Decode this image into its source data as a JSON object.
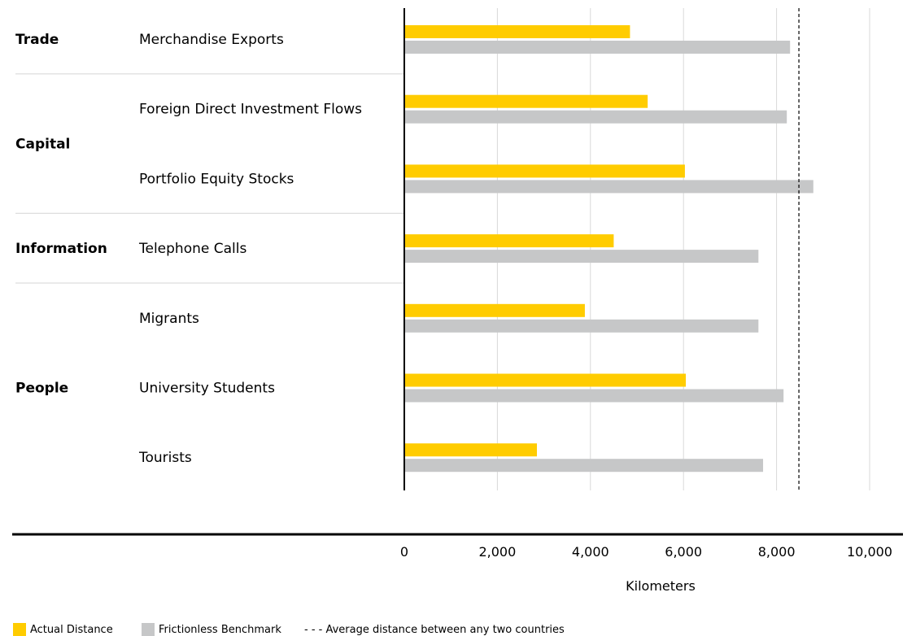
{
  "chart_data": {
    "type": "bar",
    "orientation": "horizontal",
    "groups": [
      {
        "name": "Trade",
        "rows": [
          "Merchandise Exports"
        ]
      },
      {
        "name": "Capital",
        "rows": [
          "Foreign Direct Investment Flows",
          "Portfolio Equity Stocks"
        ]
      },
      {
        "name": "Information",
        "rows": [
          "Telephone Calls"
        ]
      },
      {
        "name": "People",
        "rows": [
          "Migrants",
          "University Students",
          "Tourists"
        ]
      }
    ],
    "categories": [
      "Merchandise Exports",
      "Foreign Direct Investment Flows",
      "Portfolio Equity Stocks",
      "Telephone Calls",
      "Migrants",
      "University Students",
      "Tourists"
    ],
    "series": [
      {
        "name": "Actual Distance",
        "color": "#FFCC00",
        "values": [
          4850,
          5230,
          6030,
          4500,
          3880,
          6050,
          2850
        ]
      },
      {
        "name": "Frictionless Benchmark",
        "color": "#C6C7C8",
        "values": [
          8290,
          8220,
          8790,
          7610,
          7610,
          8150,
          7710
        ]
      }
    ],
    "reference_line": {
      "label": "- - - Average distance between any two countries",
      "value": 8480
    },
    "xlim": [
      0,
      10000
    ],
    "xticks": [
      0,
      2000,
      4000,
      6000,
      8000,
      10000
    ],
    "xtick_labels": [
      "0",
      "2,000",
      "4,000",
      "6,000",
      "8,000",
      "10,000"
    ],
    "xlabel": "Kilometers",
    "grid": true,
    "legend_position": "bottom-left"
  }
}
